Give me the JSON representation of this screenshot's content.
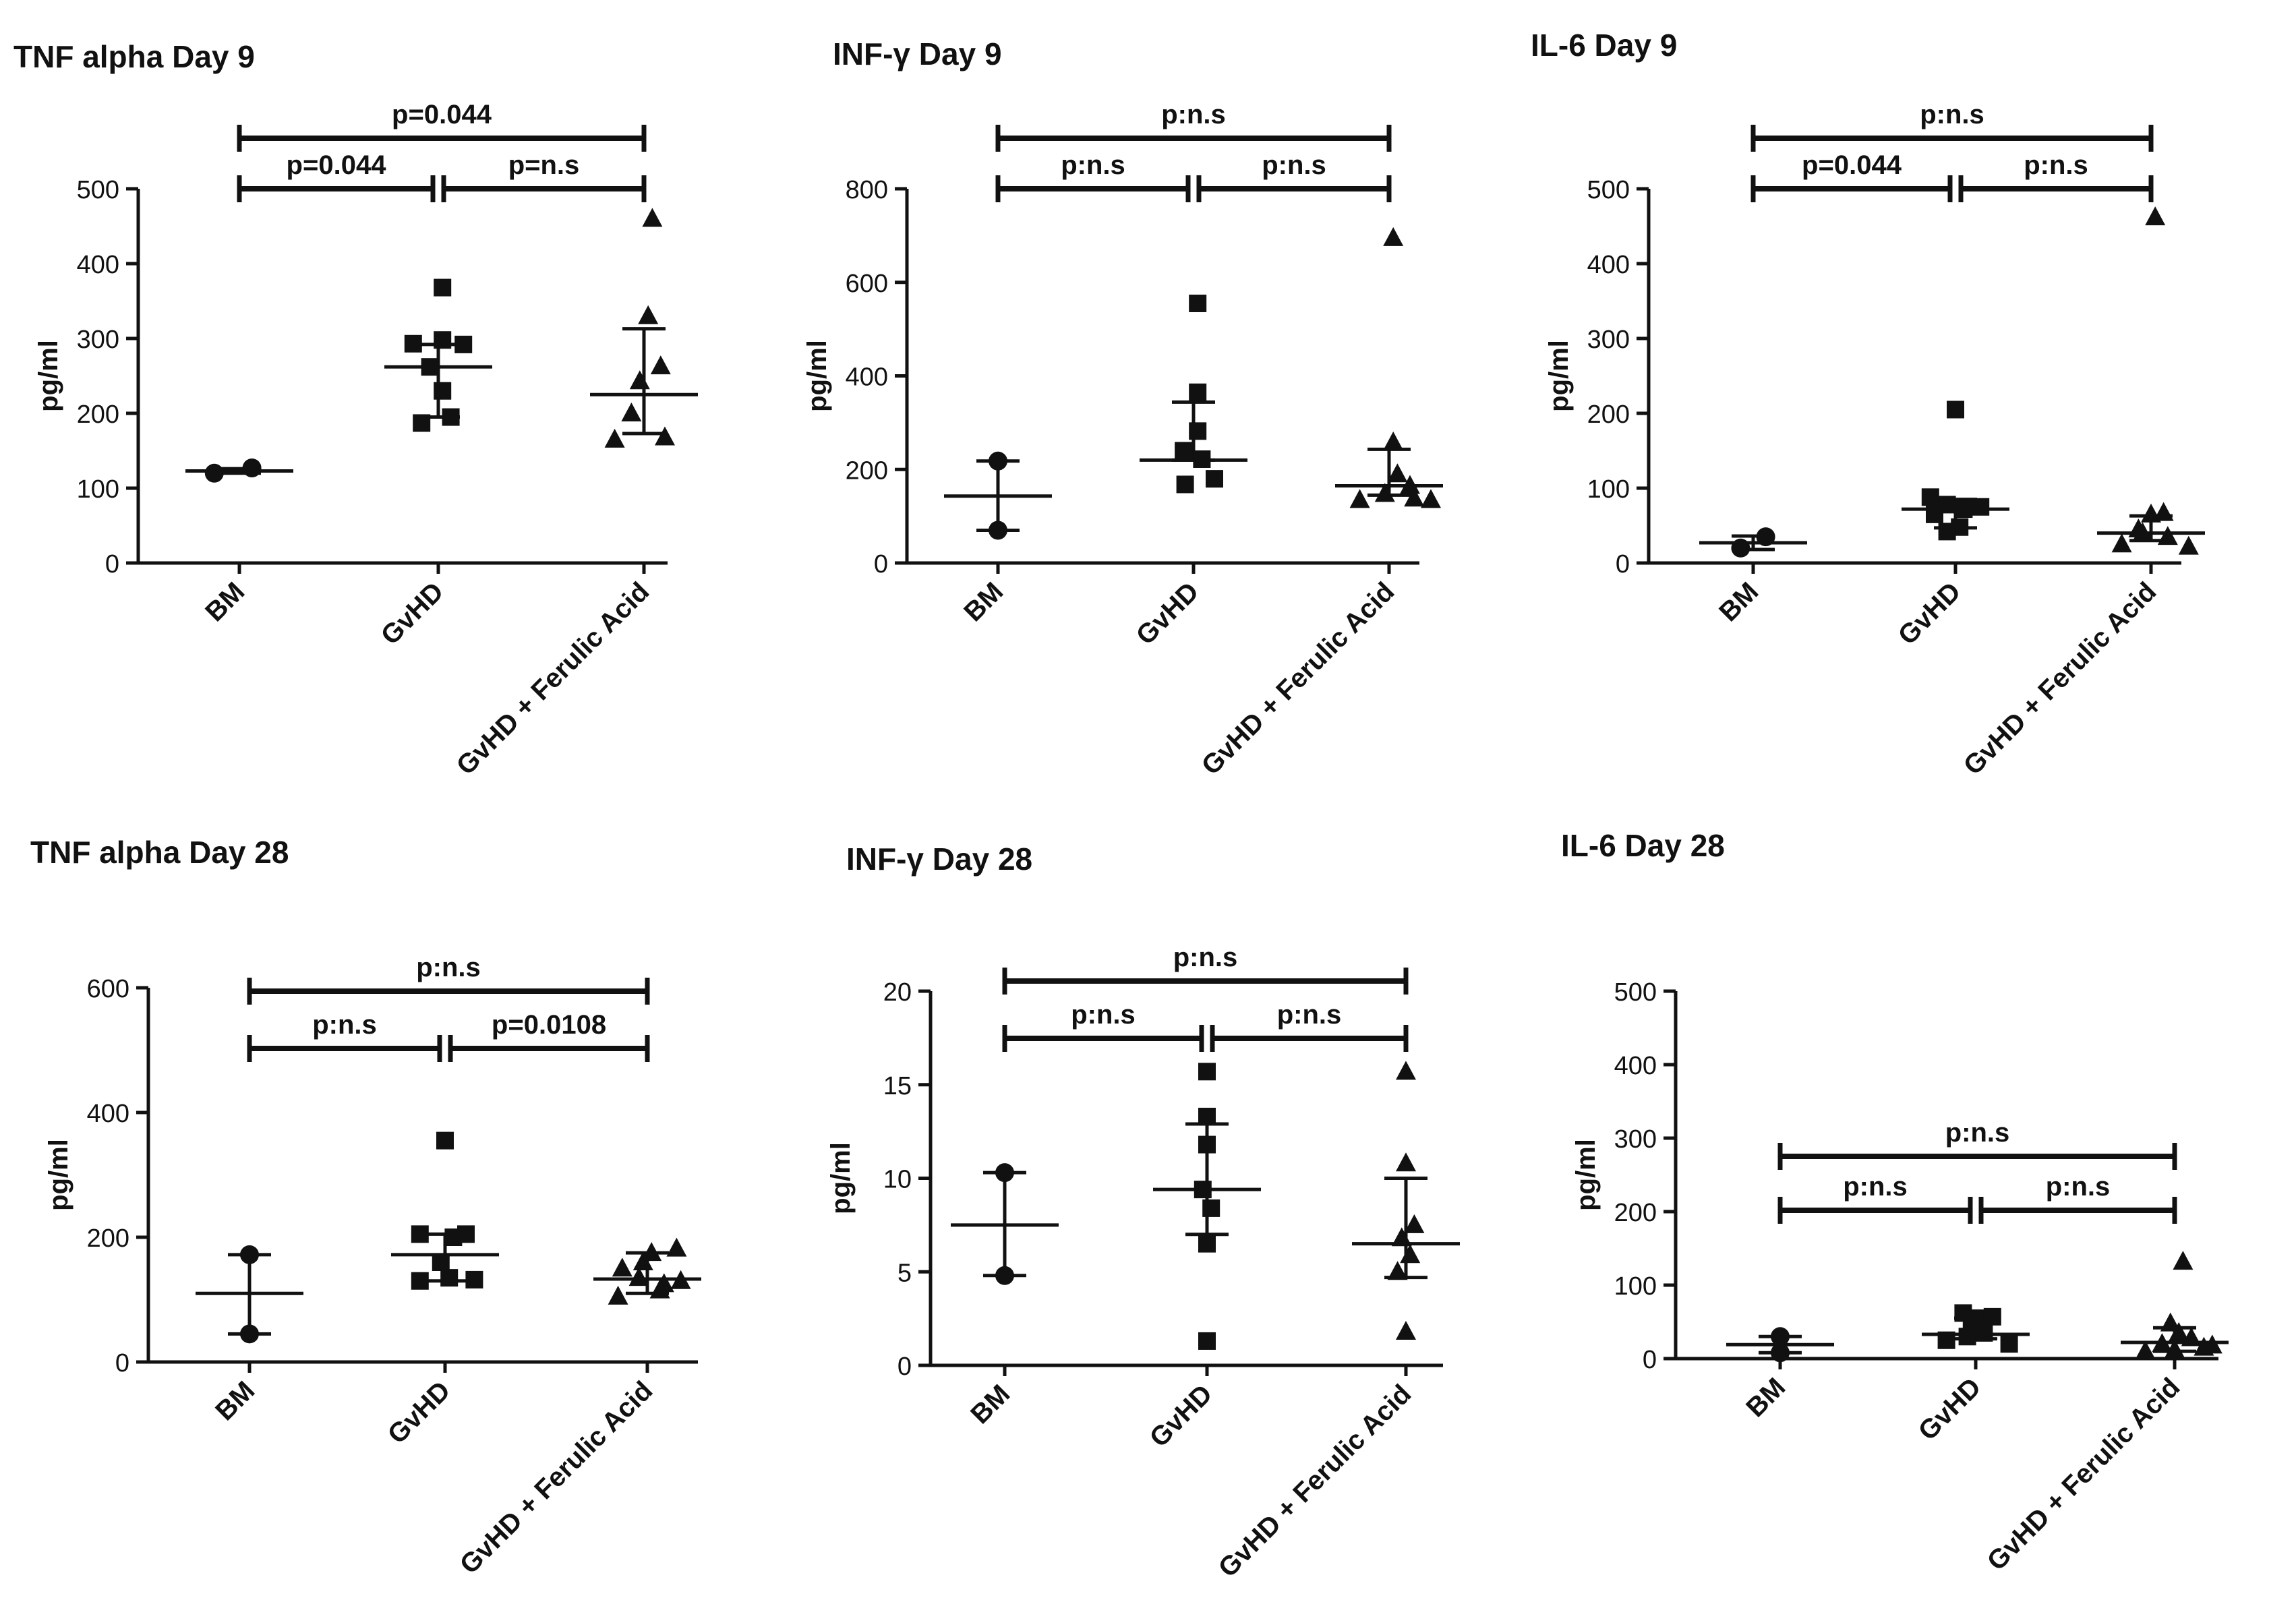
{
  "figure": {
    "background": "#ffffff",
    "ink": "#111111"
  },
  "chart_data": [
    {
      "id": "tnf-d9",
      "title": "TNF alpha Day 9",
      "type": "scatter",
      "ylabel": "pg/ml",
      "ylim": [
        0,
        500
      ],
      "yticks": [
        0,
        100,
        200,
        300,
        400,
        500
      ],
      "categories": [
        "BM",
        "GvHD",
        "GvHD + Ferulic Acid"
      ],
      "groups": [
        {
          "name": "BM",
          "marker": "circle",
          "points": [
            [
              -0.3,
              120
            ],
            [
              0.15,
              127
            ]
          ],
          "mean": 123,
          "err": [
            120,
            126
          ]
        },
        {
          "name": "GvHD",
          "marker": "square",
          "points": [
            [
              0.05,
              368
            ],
            [
              -0.3,
              293
            ],
            [
              0.05,
              298
            ],
            [
              0.3,
              292
            ],
            [
              -0.1,
              262
            ],
            [
              0.05,
              230
            ],
            [
              -0.2,
              187
            ],
            [
              0.15,
              195
            ]
          ],
          "mean": 262,
          "err": [
            195,
            292
          ]
        },
        {
          "name": "GvHD + Ferulic Acid",
          "marker": "triangle",
          "points": [
            [
              0.1,
              460
            ],
            [
              0.05,
              330
            ],
            [
              0.2,
              263
            ],
            [
              -0.05,
              243
            ],
            [
              -0.15,
              200
            ],
            [
              -0.35,
              165
            ],
            [
              0.25,
              168
            ]
          ],
          "mean": 225,
          "err": [
            173,
            313
          ]
        }
      ],
      "comparisons": [
        {
          "from": 0,
          "to": 1,
          "level": 1,
          "label": "p=0.044"
        },
        {
          "from": 1,
          "to": 2,
          "level": 1,
          "label": "p=n.s"
        },
        {
          "from": 0,
          "to": 2,
          "level": 2,
          "label": "p=0.044"
        }
      ]
    },
    {
      "id": "inf-d9",
      "title": "INF-γ  Day 9",
      "type": "scatter",
      "ylabel": "pg/ml",
      "ylim": [
        0,
        800
      ],
      "yticks": [
        0,
        200,
        400,
        600,
        800
      ],
      "categories": [
        "BM",
        "GvHD",
        "GvHD + Ferulic Acid"
      ],
      "groups": [
        {
          "name": "BM",
          "marker": "circle",
          "points": [
            [
              0,
              218
            ],
            [
              0,
              70
            ]
          ],
          "mean": 143,
          "err": [
            70,
            218
          ]
        },
        {
          "name": "GvHD",
          "marker": "square",
          "points": [
            [
              0.05,
              555
            ],
            [
              0.05,
              365
            ],
            [
              0.05,
              282
            ],
            [
              -0.12,
              240
            ],
            [
              0.25,
              180
            ],
            [
              -0.1,
              168
            ],
            [
              0.1,
              222
            ]
          ],
          "mean": 220,
          "err": [
            220,
            344
          ]
        },
        {
          "name": "GvHD + Ferulic Acid",
          "marker": "triangle",
          "points": [
            [
              0.05,
              695
            ],
            [
              0.05,
              258
            ],
            [
              -0.35,
              135
            ],
            [
              0.1,
              190
            ],
            [
              0.25,
              165
            ],
            [
              -0.05,
              148
            ],
            [
              0.3,
              138
            ],
            [
              0.5,
              135
            ]
          ],
          "mean": 165,
          "err": [
            145,
            243
          ]
        }
      ],
      "comparisons": [
        {
          "from": 0,
          "to": 1,
          "level": 1,
          "label": "p:n.s"
        },
        {
          "from": 1,
          "to": 2,
          "level": 1,
          "label": "p:n.s"
        },
        {
          "from": 0,
          "to": 2,
          "level": 2,
          "label": "p:n.s"
        }
      ]
    },
    {
      "id": "il6-d9",
      "title": "IL-6 Day 9",
      "type": "scatter",
      "ylabel": "pg/ml",
      "ylim": [
        0,
        500
      ],
      "yticks": [
        0,
        100,
        200,
        300,
        400,
        500
      ],
      "categories": [
        "BM",
        "GvHD",
        "GvHD + Ferulic Acid"
      ],
      "groups": [
        {
          "name": "BM",
          "marker": "circle",
          "points": [
            [
              -0.15,
              20
            ],
            [
              0.15,
              35
            ]
          ],
          "mean": 27,
          "err": [
            18,
            36
          ]
        },
        {
          "name": "GvHD",
          "marker": "square",
          "points": [
            [
              0.0,
              205
            ],
            [
              -0.3,
              88
            ],
            [
              -0.1,
              78
            ],
            [
              0.1,
              72
            ],
            [
              0.3,
              75
            ],
            [
              -0.25,
              65
            ],
            [
              0.05,
              48
            ],
            [
              -0.1,
              42
            ]
          ],
          "mean": 72,
          "err": [
            47,
            85
          ]
        },
        {
          "name": "GvHD + Ferulic Acid",
          "marker": "triangle",
          "points": [
            [
              0.05,
              462
            ],
            [
              0.0,
              65
            ],
            [
              0.15,
              67
            ],
            [
              -0.15,
              45
            ],
            [
              -0.35,
              25
            ],
            [
              0.2,
              35
            ],
            [
              0.45,
              22
            ],
            [
              -0.1,
              40
            ]
          ],
          "mean": 40,
          "err": [
            30,
            63
          ]
        }
      ],
      "comparisons": [
        {
          "from": 0,
          "to": 1,
          "level": 1,
          "label": "p=0.044"
        },
        {
          "from": 1,
          "to": 2,
          "level": 1,
          "label": "p:n.s"
        },
        {
          "from": 0,
          "to": 2,
          "level": 2,
          "label": "p:n.s"
        }
      ]
    },
    {
      "id": "tnf-d28",
      "title": "TNF alpha Day 28",
      "type": "scatter",
      "ylabel": "pg/ml",
      "ylim": [
        0,
        600
      ],
      "yticks": [
        0,
        200,
        400,
        600
      ],
      "categories": [
        "BM",
        "GvHD",
        "GvHD + Ferulic Acid"
      ],
      "groups": [
        {
          "name": "BM",
          "marker": "circle",
          "points": [
            [
              0,
              172
            ],
            [
              0,
              45
            ]
          ],
          "mean": 110,
          "err": [
            45,
            172
          ]
        },
        {
          "name": "GvHD",
          "marker": "square",
          "points": [
            [
              0.0,
              355
            ],
            [
              -0.3,
              205
            ],
            [
              0.1,
              200
            ],
            [
              0.25,
              205
            ],
            [
              -0.05,
              160
            ],
            [
              -0.3,
              130
            ],
            [
              0.05,
              135
            ],
            [
              0.35,
              132
            ]
          ],
          "mean": 172,
          "err": [
            130,
            205
          ]
        },
        {
          "name": "GvHD + Ferulic Acid",
          "marker": "triangle",
          "points": [
            [
              0.05,
              175
            ],
            [
              0.35,
              182
            ],
            [
              -0.05,
              160
            ],
            [
              -0.3,
              150
            ],
            [
              -0.1,
              135
            ],
            [
              0.2,
              125
            ],
            [
              -0.35,
              105
            ],
            [
              0.15,
              115
            ],
            [
              0.4,
              130
            ]
          ],
          "mean": 133,
          "err": [
            110,
            175
          ]
        }
      ],
      "comparisons": [
        {
          "from": 0,
          "to": 1,
          "level": 1,
          "label": "p:n.s"
        },
        {
          "from": 1,
          "to": 2,
          "level": 1,
          "label": "p=0.0108"
        },
        {
          "from": 0,
          "to": 2,
          "level": 2,
          "label": "p:n.s"
        }
      ]
    },
    {
      "id": "inf-d28",
      "title": "INF-γ  Day 28",
      "type": "scatter",
      "ylabel": "pg/ml",
      "ylim": [
        0,
        20
      ],
      "yticks": [
        0,
        5,
        10,
        15,
        20
      ],
      "categories": [
        "BM",
        "GvHD",
        "GvHD + Ferulic Acid"
      ],
      "groups": [
        {
          "name": "BM",
          "marker": "circle",
          "points": [
            [
              0,
              10.3
            ],
            [
              0,
              4.8
            ]
          ],
          "mean": 7.5,
          "err": [
            4.8,
            10.3
          ]
        },
        {
          "name": "GvHD",
          "marker": "square",
          "points": [
            [
              0.0,
              15.7
            ],
            [
              0.0,
              13.3
            ],
            [
              0.0,
              11.8
            ],
            [
              -0.05,
              9.4
            ],
            [
              0.05,
              8.4
            ],
            [
              0.0,
              6.5
            ],
            [
              0.0,
              1.3
            ]
          ],
          "mean": 9.4,
          "err": [
            7.0,
            12.9
          ]
        },
        {
          "name": "GvHD + Ferulic Acid",
          "marker": "triangle",
          "points": [
            [
              0.0,
              15.7
            ],
            [
              0.0,
              10.8
            ],
            [
              0.1,
              7.5
            ],
            [
              -0.05,
              6.8
            ],
            [
              0.05,
              5.9
            ],
            [
              -0.1,
              5.0
            ],
            [
              0.0,
              1.8
            ]
          ],
          "mean": 6.5,
          "err": [
            4.7,
            10.0
          ]
        }
      ],
      "comparisons": [
        {
          "from": 0,
          "to": 1,
          "level": 1,
          "label": "p:n.s"
        },
        {
          "from": 1,
          "to": 2,
          "level": 1,
          "label": "p:n.s"
        },
        {
          "from": 0,
          "to": 2,
          "level": 2,
          "label": "p:n.s"
        }
      ]
    },
    {
      "id": "il6-d28",
      "title": "IL-6 Day 28",
      "type": "scatter",
      "ylabel": "pg/ml",
      "ylim": [
        0,
        500
      ],
      "yticks": [
        0,
        100,
        200,
        300,
        400,
        500
      ],
      "categories": [
        "BM",
        "GvHD",
        "GvHD + Ferulic Acid"
      ],
      "groups": [
        {
          "name": "BM",
          "marker": "circle",
          "points": [
            [
              0,
              30
            ],
            [
              0,
              8
            ]
          ],
          "mean": 19,
          "err": [
            8,
            30
          ]
        },
        {
          "name": "GvHD",
          "marker": "square",
          "points": [
            [
              -0.15,
              62
            ],
            [
              0.05,
              55
            ],
            [
              0.2,
              57
            ],
            [
              -0.05,
              45
            ],
            [
              -0.35,
              25
            ],
            [
              0.1,
              35
            ],
            [
              0.4,
              20
            ],
            [
              -0.1,
              30
            ]
          ],
          "mean": 33,
          "err": [
            27,
            55
          ]
        },
        {
          "name": "GvHD + Ferulic Acid",
          "marker": "triangle",
          "points": [
            [
              0.1,
              132
            ],
            [
              -0.05,
              48
            ],
            [
              -0.35,
              10
            ],
            [
              0.05,
              35
            ],
            [
              0.2,
              28
            ],
            [
              -0.15,
              20
            ],
            [
              0.35,
              15
            ],
            [
              0.45,
              18
            ],
            [
              0.0,
              12
            ]
          ],
          "mean": 22,
          "err": [
            10,
            42
          ]
        }
      ],
      "comparisons": [
        {
          "from": 0,
          "to": 1,
          "level": 1,
          "label": "p:n.s"
        },
        {
          "from": 1,
          "to": 2,
          "level": 1,
          "label": "p:n.s"
        },
        {
          "from": 0,
          "to": 2,
          "level": 2,
          "label": "p:n.s"
        }
      ]
    }
  ]
}
